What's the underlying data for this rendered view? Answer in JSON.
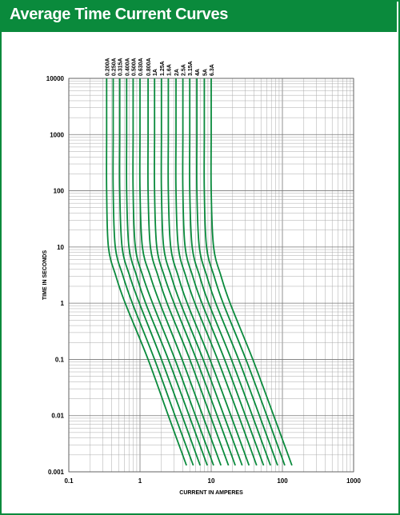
{
  "header": {
    "title": "Average Time Current Curves"
  },
  "chart_data": {
    "type": "line",
    "xscale": "log",
    "yscale": "log",
    "xlabel": "CURRENT IN AMPERES",
    "ylabel": "TIME IN SECONDS",
    "xlim": [
      0.1,
      1000
    ],
    "ylim": [
      0.001,
      10000
    ],
    "x_ticks": [
      "0.1",
      "1",
      "10",
      "100",
      "1000"
    ],
    "y_ticks": [
      "10000",
      "1000",
      "100",
      "10",
      "1",
      "0.1",
      "0.01",
      "0.001"
    ],
    "grid": true,
    "line_color": "#0a8a3c",
    "series": [
      {
        "name": "0.200A",
        "points": [
          [
            0.34,
            10000
          ],
          [
            0.34,
            1000
          ],
          [
            0.34,
            100
          ],
          [
            0.36,
            10
          ],
          [
            0.46,
            3
          ],
          [
            0.62,
            1
          ],
          [
            1.3,
            0.1
          ],
          [
            2.5,
            0.01
          ],
          [
            4.5,
            0.0013
          ]
        ]
      },
      {
        "name": "0.250A",
        "points": [
          [
            0.42,
            10000
          ],
          [
            0.42,
            1000
          ],
          [
            0.42,
            100
          ],
          [
            0.45,
            10
          ],
          [
            0.58,
            3
          ],
          [
            0.78,
            1
          ],
          [
            1.6,
            0.1
          ],
          [
            3.1,
            0.01
          ],
          [
            5.6,
            0.0013
          ]
        ]
      },
      {
        "name": "0.315A",
        "points": [
          [
            0.52,
            10000
          ],
          [
            0.52,
            1000
          ],
          [
            0.52,
            100
          ],
          [
            0.56,
            10
          ],
          [
            0.72,
            3
          ],
          [
            0.98,
            1
          ],
          [
            2.0,
            0.1
          ],
          [
            3.9,
            0.01
          ],
          [
            7.0,
            0.0013
          ]
        ]
      },
      {
        "name": "0.400A",
        "points": [
          [
            0.65,
            10000
          ],
          [
            0.65,
            1000
          ],
          [
            0.65,
            100
          ],
          [
            0.7,
            10
          ],
          [
            0.9,
            3
          ],
          [
            1.2,
            1
          ],
          [
            2.5,
            0.1
          ],
          [
            4.9,
            0.01
          ],
          [
            8.8,
            0.0013
          ]
        ]
      },
      {
        "name": "0.500A",
        "points": [
          [
            0.8,
            10000
          ],
          [
            0.8,
            1000
          ],
          [
            0.8,
            100
          ],
          [
            0.86,
            10
          ],
          [
            1.1,
            3
          ],
          [
            1.5,
            1
          ],
          [
            3.1,
            0.1
          ],
          [
            6.0,
            0.01
          ],
          [
            10.8,
            0.0013
          ]
        ]
      },
      {
        "name": "0.630A",
        "points": [
          [
            1.0,
            10000
          ],
          [
            1.0,
            1000
          ],
          [
            1.0,
            100
          ],
          [
            1.08,
            10
          ],
          [
            1.4,
            3
          ],
          [
            1.9,
            1
          ],
          [
            3.9,
            0.1
          ],
          [
            7.6,
            0.01
          ],
          [
            13.7,
            0.0013
          ]
        ]
      },
      {
        "name": "0.800A",
        "points": [
          [
            1.3,
            10000
          ],
          [
            1.3,
            1000
          ],
          [
            1.3,
            100
          ],
          [
            1.4,
            10
          ],
          [
            1.8,
            3
          ],
          [
            2.4,
            1
          ],
          [
            5.0,
            0.1
          ],
          [
            9.7,
            0.01
          ],
          [
            17.5,
            0.0013
          ]
        ]
      },
      {
        "name": "1A",
        "points": [
          [
            1.6,
            10000
          ],
          [
            1.6,
            1000
          ],
          [
            1.6,
            100
          ],
          [
            1.72,
            10
          ],
          [
            2.2,
            3
          ],
          [
            3.0,
            1
          ],
          [
            6.2,
            0.1
          ],
          [
            12.1,
            0.01
          ],
          [
            21.8,
            0.0013
          ]
        ]
      },
      {
        "name": "1.25A",
        "points": [
          [
            2.0,
            10000
          ],
          [
            2.0,
            1000
          ],
          [
            2.0,
            100
          ],
          [
            2.15,
            10
          ],
          [
            2.75,
            3
          ],
          [
            3.7,
            1
          ],
          [
            7.7,
            0.1
          ],
          [
            15.1,
            0.01
          ],
          [
            27.2,
            0.0013
          ]
        ]
      },
      {
        "name": "1.6A",
        "points": [
          [
            2.5,
            10000
          ],
          [
            2.5,
            1000
          ],
          [
            2.5,
            100
          ],
          [
            2.7,
            10
          ],
          [
            3.45,
            3
          ],
          [
            4.6,
            1
          ],
          [
            9.6,
            0.1
          ],
          [
            18.9,
            0.01
          ],
          [
            34.0,
            0.0013
          ]
        ]
      },
      {
        "name": "2A",
        "points": [
          [
            3.2,
            10000
          ],
          [
            3.2,
            1000
          ],
          [
            3.2,
            100
          ],
          [
            3.45,
            10
          ],
          [
            4.4,
            3
          ],
          [
            5.9,
            1
          ],
          [
            12.3,
            0.1
          ],
          [
            24.2,
            0.01
          ],
          [
            43.5,
            0.0013
          ]
        ]
      },
      {
        "name": "2.5A",
        "points": [
          [
            4.0,
            10000
          ],
          [
            4.0,
            1000
          ],
          [
            4.0,
            100
          ],
          [
            4.3,
            10
          ],
          [
            5.5,
            3
          ],
          [
            7.4,
            1
          ],
          [
            15.4,
            0.1
          ],
          [
            30.2,
            0.01
          ],
          [
            54.4,
            0.0013
          ]
        ]
      },
      {
        "name": "3.15A",
        "points": [
          [
            5.0,
            10000
          ],
          [
            5.0,
            1000
          ],
          [
            5.0,
            100
          ],
          [
            5.4,
            10
          ],
          [
            6.9,
            3
          ],
          [
            9.2,
            1
          ],
          [
            19.2,
            0.1
          ],
          [
            37.8,
            0.01
          ],
          [
            68.0,
            0.0013
          ]
        ]
      },
      {
        "name": "4A",
        "points": [
          [
            6.3,
            10000
          ],
          [
            6.3,
            1000
          ],
          [
            6.3,
            100
          ],
          [
            6.8,
            10
          ],
          [
            8.7,
            3
          ],
          [
            11.6,
            1
          ],
          [
            24.2,
            0.1
          ],
          [
            47.6,
            0.01
          ],
          [
            85.7,
            0.0013
          ]
        ]
      },
      {
        "name": "5A",
        "points": [
          [
            8.0,
            10000
          ],
          [
            8.0,
            1000
          ],
          [
            8.0,
            100
          ],
          [
            8.6,
            10
          ],
          [
            11.0,
            3
          ],
          [
            14.7,
            1
          ],
          [
            30.7,
            0.1
          ],
          [
            60.4,
            0.01
          ],
          [
            108,
            0.0013
          ]
        ]
      },
      {
        "name": "6.3A",
        "points": [
          [
            10.0,
            10000
          ],
          [
            10.0,
            1000
          ],
          [
            10.0,
            100
          ],
          [
            10.8,
            10
          ],
          [
            13.8,
            3
          ],
          [
            18.4,
            1
          ],
          [
            38.4,
            0.1
          ],
          [
            75.5,
            0.01
          ],
          [
            136,
            0.0013
          ]
        ]
      }
    ]
  }
}
